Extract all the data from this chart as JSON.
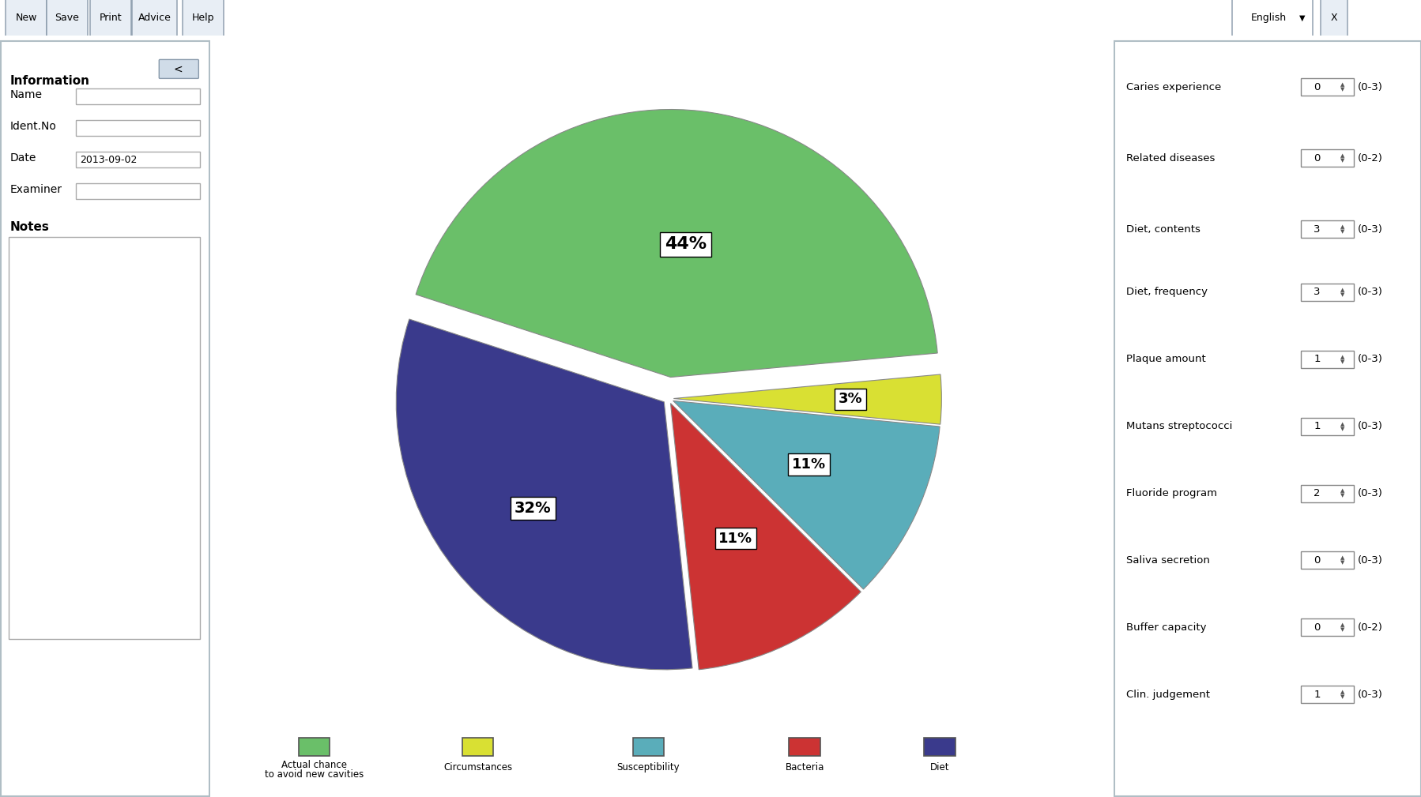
{
  "slices": [
    44,
    3,
    11,
    11,
    32
  ],
  "labels": [
    "Actual chance\nto avoid new cavities",
    "Circumstances",
    "Susceptibility",
    "Bacteria",
    "Diet"
  ],
  "colors": [
    "#6abf69",
    "#d9e033",
    "#5aadba",
    "#cc3333",
    "#3a3a8c"
  ],
  "pct_labels": [
    "44%",
    "3%",
    "11%",
    "11%",
    "32%"
  ],
  "explode": [
    0.08,
    0.02,
    0.02,
    0.02,
    0.02
  ],
  "startangle": 162,
  "bg_color": "#ffffff",
  "right_labels": [
    "Caries experience",
    "Related diseases",
    "Diet, contents",
    "Diet, frequency",
    "Plaque amount",
    "Mutans streptococci",
    "Fluoride program",
    "Saliva secretion",
    "Buffer capacity",
    "Clin. judgement"
  ],
  "right_ranges": [
    "(0-3)",
    "(0-2)",
    "(0-3)",
    "(0-3)",
    "(0-3)",
    "(0-3)",
    "(0-3)",
    "(0-3)",
    "(0-2)",
    "(0-3)"
  ],
  "right_values": [
    "0",
    "0",
    "3",
    "3",
    "1",
    "1",
    "2",
    "0",
    "0",
    "1"
  ],
  "top_buttons": [
    "New",
    "Save",
    "Print",
    "Advice",
    "Help"
  ],
  "date_value": "2013-09-02",
  "info_fields": [
    "Name",
    "Ident.No",
    "Date",
    "Examiner"
  ],
  "notes_label": "Notes",
  "information_label": "Information",
  "legend_colors": [
    "#6abf69",
    "#d9e033",
    "#5aadba",
    "#cc3333",
    "#3a3a8c"
  ],
  "legend_labels": [
    "Actual chance\nto avoid new cavities",
    "Circumstances",
    "Susceptibility",
    "Bacteria",
    "Diet"
  ]
}
